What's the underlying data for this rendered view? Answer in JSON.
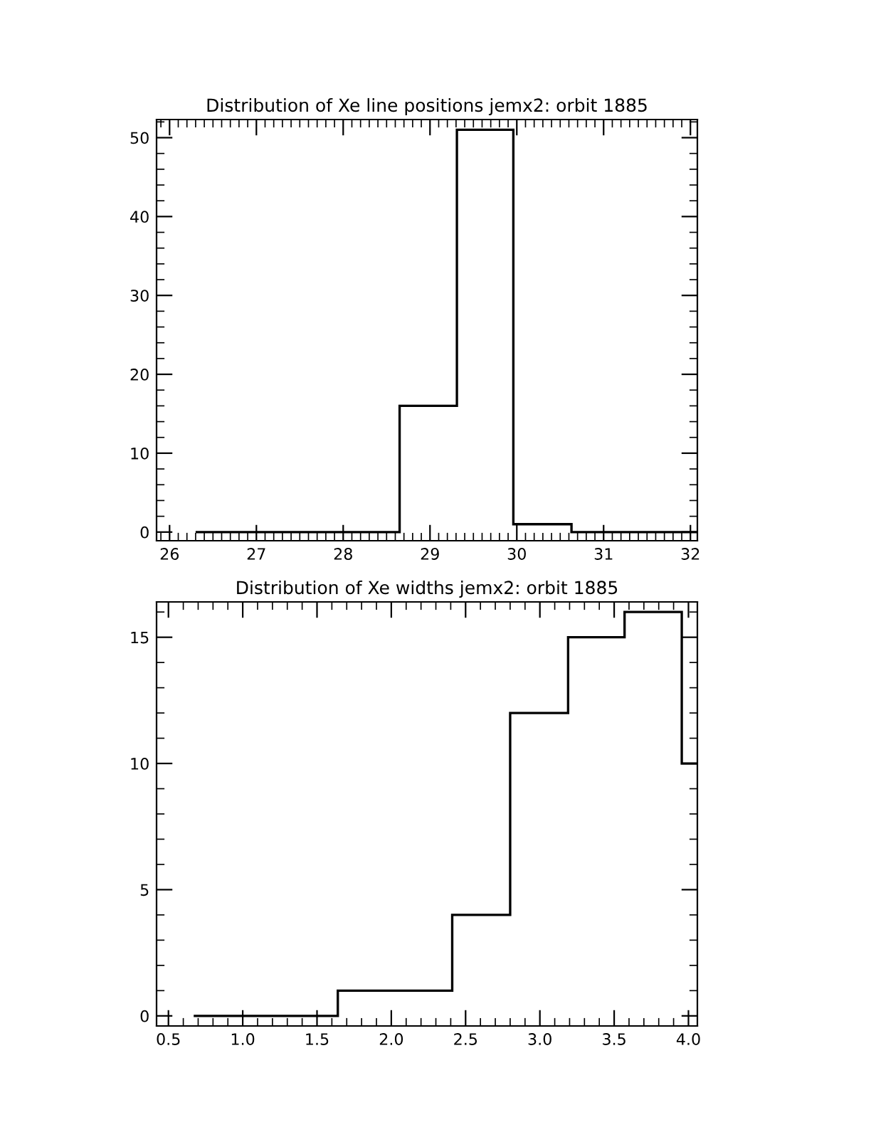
{
  "chart_data": [
    {
      "type": "histogram",
      "title": "Distribution of Xe line positions jemx2: orbit 1885",
      "bins": [
        26.3,
        28.65,
        29.31,
        29.96,
        30.63,
        32.08
      ],
      "values": [
        0,
        16,
        51,
        1,
        0
      ],
      "color": "#000000",
      "xlim": [
        25.85,
        32.08
      ],
      "xticks": [
        26,
        27,
        28,
        29,
        30,
        31,
        32
      ],
      "ylim": [
        -1.1,
        52.3
      ],
      "yticks": [
        0,
        10,
        20,
        30,
        40,
        50
      ],
      "grid": false
    },
    {
      "type": "histogram",
      "title": "Distribution of Xe widths jemx2: orbit 1885",
      "bins": [
        0.67,
        1.64,
        2.41,
        2.8,
        3.19,
        3.57,
        3.955,
        4.06
      ],
      "values": [
        0,
        1,
        4,
        12,
        15,
        16,
        10
      ],
      "color": "#000000",
      "xlim": [
        0.42,
        4.06
      ],
      "xticks": [
        {
          "value": 0.5,
          "label": "0.5"
        },
        {
          "value": 1.0,
          "label": "1.0"
        },
        {
          "value": 1.5,
          "label": "1.5"
        },
        {
          "value": 2.0,
          "label": "2.0"
        },
        {
          "value": 2.5,
          "label": "2.5"
        },
        {
          "value": 3.0,
          "label": "3.0"
        },
        {
          "value": 3.5,
          "label": "3.5"
        },
        {
          "value": 4.0,
          "label": "4.0"
        }
      ],
      "ylim": [
        -0.4,
        16.4
      ],
      "yticks": [
        0,
        5,
        10,
        15
      ],
      "grid": false
    }
  ]
}
